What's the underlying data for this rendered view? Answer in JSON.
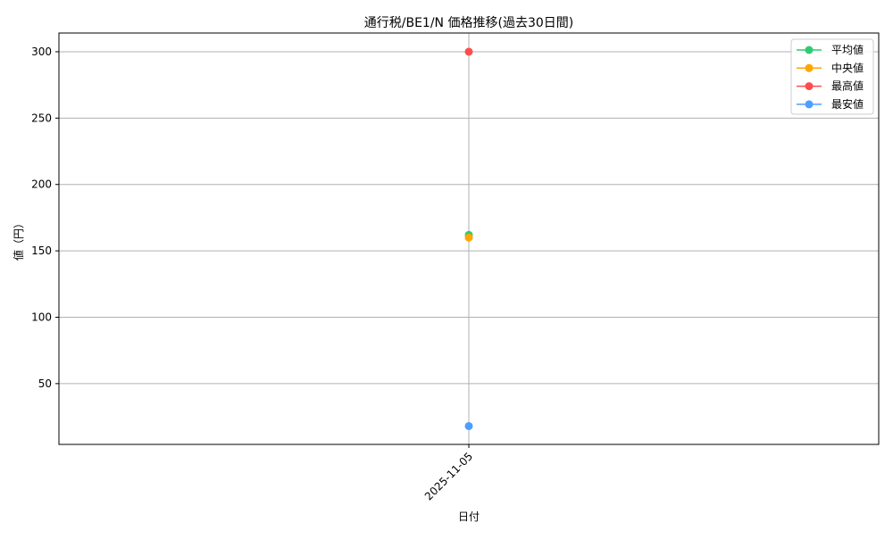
{
  "chart_data": {
    "type": "line",
    "title": "通行税/BE1/N 価格推移(過去30日間)",
    "xlabel": "日付",
    "ylabel": "値（円）",
    "categories": [
      "2025-11-05"
    ],
    "ylim": [
      4.2,
      314.1
    ],
    "yticks": [
      50,
      100,
      150,
      200,
      250,
      300
    ],
    "grid": true,
    "legend_position": "top-right",
    "series": [
      {
        "name": "平均値",
        "values": [
          162
        ],
        "color": "#2ecc71"
      },
      {
        "name": "中央値",
        "values": [
          160
        ],
        "color": "#ffa500"
      },
      {
        "name": "最高値",
        "values": [
          300
        ],
        "color": "#ff4d4d"
      },
      {
        "name": "最安値",
        "values": [
          18
        ],
        "color": "#4d9fff"
      }
    ]
  }
}
